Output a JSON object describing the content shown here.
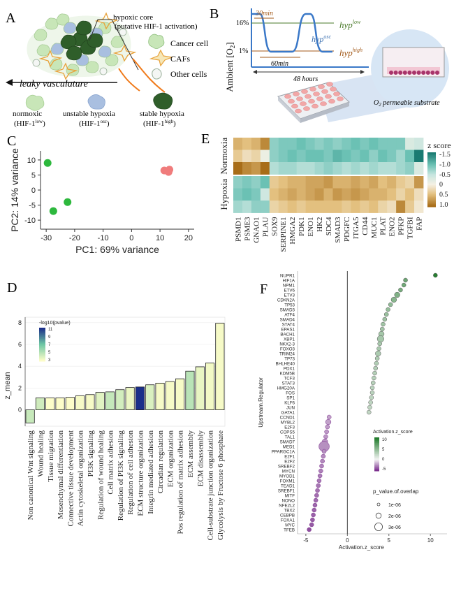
{
  "panel_a": {
    "letter": "A",
    "core_label_1": "hypoxic core",
    "core_label_2": "(putative HIF-1 activation)",
    "legend": [
      "Cancer cell",
      "CAFs",
      "Other cells"
    ],
    "vessel_label": "leaky vasculature",
    "states": [
      {
        "name": "normoxic",
        "sub": "HIF-1",
        "sup": "low"
      },
      {
        "name": "unstable hypoxia",
        "sub": "HIF-1",
        "sup": "osc"
      },
      {
        "name": "stable hypoxia",
        "sub": "HIF-1",
        "sup": "high"
      }
    ],
    "colors": {
      "normoxic": "#c8e6b8",
      "unstable": "#a9bfe0",
      "stable": "#2f5e2a",
      "caf": "#e8a23a",
      "vessel": "#f07a1a"
    }
  },
  "panel_b": {
    "letter": "B",
    "ylabel": "Ambient [O",
    "ylabel_sub": "2",
    "ylabel_end": "]",
    "y16": "16%",
    "y1": "1%",
    "t30": "30min",
    "t60": "60min",
    "t48": "48 hours",
    "hyp_low": "hyp",
    "hyp_low_sup": "low",
    "hyp_osc": "hyp",
    "hyp_osc_sup": "osc",
    "hyp_high": "hyp",
    "hyp_high_sup": "high",
    "substrate": "O",
    "substrate_sub": "2",
    "substrate_rest": " permeable substrate",
    "colors": {
      "low": "#4a7a2a",
      "osc": "#3a6fb0",
      "high": "#a35a1a"
    }
  },
  "panel_c": {
    "letter": "C",
    "chart_data": {
      "type": "scatter",
      "xlabel": "PC1: 69% variance",
      "ylabel": "PC2: 14% variance",
      "xlim": [
        -32,
        22
      ],
      "ylim": [
        -13,
        13
      ],
      "xticks": [
        -30,
        -20,
        -10,
        0,
        10,
        20
      ],
      "yticks": [
        10,
        5,
        0,
        -5,
        -10
      ],
      "series": [
        {
          "color": "#2db83d",
          "points": [
            [
              -29.5,
              9.0
            ],
            [
              -27.5,
              -7.0
            ],
            [
              -22.5,
              -4.0
            ]
          ]
        },
        {
          "color": "#f07c7c",
          "points": [
            [
              11.5,
              6.5
            ],
            [
              13.0,
              6.0
            ],
            [
              13.3,
              6.8
            ]
          ]
        }
      ]
    }
  },
  "panel_d": {
    "letter": "D",
    "chart_data": {
      "type": "bar",
      "ylabel": "z_mean",
      "ylim": [
        -1.5,
        8.5
      ],
      "yticks": [
        0,
        2,
        4,
        6,
        8
      ],
      "legend_title": "-log10(pvalue)",
      "legend_ticks": [
        11,
        9,
        7,
        5,
        3
      ],
      "categories": [
        "Non canonical Wnt signaling",
        "Wound healing",
        "Tissue migration",
        "Mesenchymal differentiation",
        "Connective tissue development",
        "Actin cytoskeletal organization",
        "PI3K signaling",
        "Regulation of wound healing",
        "Cell matrix adhesion",
        "Regulation of PI3K signaling",
        "Regulation of cell adhesion",
        "ECM structure organization",
        "Integrin mediated adhesion",
        "Circadian regulation",
        "ECM organization",
        "Pos regulation of matrix adhesion",
        "ECM assembly",
        "ECM disassembly",
        "Cell-substrate junction organization",
        "Glycolysis by Fructose 6 phosphate"
      ],
      "values": [
        -1.2,
        1.1,
        1.1,
        1.1,
        1.15,
        1.3,
        1.4,
        1.6,
        1.65,
        1.85,
        2.05,
        2.1,
        2.3,
        2.45,
        2.6,
        2.85,
        3.55,
        3.95,
        4.3,
        7.95
      ],
      "neglog10p": [
        4.5,
        4.3,
        3.0,
        3.0,
        3.0,
        3.2,
        3.2,
        3.8,
        4.6,
        4.2,
        3.5,
        11.0,
        4.0,
        3.2,
        3.2,
        3.2,
        4.9,
        3.6,
        3.3,
        3.2
      ]
    }
  },
  "panel_e": {
    "letter": "E",
    "chart_data": {
      "type": "heatmap",
      "columns": [
        "PSMD1",
        "PSME3",
        "GNAO1",
        "PLAU",
        "SOX9",
        "SERPINE1",
        "HMGA2",
        "PDK1",
        "ENO1",
        "HK2",
        "SDC4",
        "SMAD3",
        "PDGFC",
        "ITGA5",
        "CD44",
        "MUC1",
        "PLAT",
        "ENO2",
        "PFKP",
        "TGFBI",
        "FAP"
      ],
      "row_groups": [
        "Normoxia",
        "Hypoxia"
      ],
      "scale_title": "z score",
      "scale_ticks": [
        "-1.5",
        "-1.0",
        "-0.5",
        "0",
        "0.5",
        "1.0"
      ],
      "normoxia": [
        [
          0.6,
          0.5,
          0.6,
          0.9,
          -0.8,
          -0.9,
          -0.9,
          -1.0,
          -0.9,
          -0.8,
          -0.9,
          -0.8,
          -0.9,
          -1.0,
          -0.9,
          -1.0,
          -0.9,
          -0.9,
          -0.9,
          -0.3,
          -0.4
        ],
        [
          0.4,
          0.2,
          0.3,
          -0.1,
          -0.8,
          -0.9,
          -1.0,
          -0.9,
          -1.0,
          -1.0,
          -0.9,
          -1.1,
          -1.0,
          -0.9,
          -1.0,
          -0.8,
          -1.0,
          -0.9,
          -0.7,
          -1.0,
          -1.6
        ],
        [
          1.1,
          0.9,
          0.8,
          1.3,
          -0.6,
          -0.7,
          -0.7,
          -0.6,
          -0.6,
          -0.7,
          -0.8,
          -0.7,
          -0.6,
          -0.7,
          -0.6,
          -0.7,
          -0.6,
          -0.6,
          -0.7,
          -0.8,
          -0.3
        ]
      ],
      "hypoxia": [
        [
          -0.8,
          -0.9,
          -0.8,
          -1.0,
          0.4,
          0.5,
          0.6,
          0.6,
          0.7,
          0.7,
          0.8,
          0.6,
          0.6,
          0.7,
          0.6,
          0.7,
          0.5,
          0.6,
          0.4,
          0.3,
          0.8
        ],
        [
          -0.9,
          -1.0,
          -0.9,
          -0.4,
          0.5,
          0.6,
          0.7,
          0.6,
          0.7,
          0.8,
          0.6,
          0.8,
          0.7,
          0.8,
          0.7,
          0.6,
          0.6,
          0.5,
          0.3,
          0.5,
          0.2
        ],
        [
          -0.7,
          -0.6,
          -0.8,
          -0.8,
          0.3,
          0.4,
          0.5,
          0.4,
          0.5,
          0.5,
          0.5,
          0.5,
          0.4,
          0.5,
          0.4,
          0.5,
          0.3,
          0.2,
          0.9,
          0.4,
          0.1
        ]
      ]
    }
  },
  "panel_f": {
    "letter": "F",
    "chart_data": {
      "type": "scatter",
      "xlabel": "Activation.z_score",
      "ylabel": "Upstream.Regulator",
      "xlim": [
        -6,
        12
      ],
      "xticks": [
        -5,
        0,
        5,
        10
      ],
      "color_legend_title": "Activation.z_score",
      "color_legend_ticks": [
        10,
        5,
        0,
        -5
      ],
      "size_legend_title": "p_value.of.overlap",
      "size_legend_items": [
        "1e-06",
        "2e-06",
        "3e-06"
      ],
      "regulators": [
        "NUPR1",
        "HIF1A",
        "NPM1",
        "ETV6",
        "ETV3",
        "CDKN2A",
        "TP53",
        "SMAD3",
        "ATF4",
        "SMAD4",
        "STAT4",
        "EPAS1",
        "BACH1",
        "XBP1",
        "NKX2-3",
        "FOXO3",
        "TRIM24",
        "TP73",
        "BHLHE40",
        "PDX1",
        "KDM5B",
        "TCF3",
        "STAT3",
        "HMG20A",
        "FOS",
        "SP1",
        "KLF6",
        "JUN",
        "GATA1",
        "CCND1",
        "MYBL2",
        "E2F3",
        "COPS5",
        "TAL1",
        "SMAD7",
        "MED1",
        "PPARGC1A",
        "E2F1",
        "E2F2",
        "SREBF2",
        "MYCN",
        "MYOD1",
        "FOXM1",
        "TEAD1",
        "SREBF1",
        "MITF",
        "NONO",
        "NFE2L2",
        "TBX2",
        "CEBPB",
        "FOXA1",
        "MYC",
        "TFEB"
      ],
      "z_scores": [
        10.6,
        7.0,
        6.8,
        6.4,
        6.0,
        5.6,
        5.2,
        4.9,
        4.7,
        4.5,
        4.3,
        4.2,
        4.1,
        4.0,
        3.9,
        3.8,
        3.7,
        3.6,
        3.5,
        3.4,
        3.3,
        3.2,
        3.1,
        3.0,
        3.0,
        2.9,
        2.8,
        2.7,
        2.6,
        -2.2,
        -2.3,
        -2.4,
        -2.5,
        -2.6,
        -2.7,
        -2.8,
        -2.8,
        -2.9,
        -3.0,
        -3.1,
        -3.2,
        -3.3,
        -3.4,
        -3.5,
        -3.6,
        -3.7,
        -3.8,
        -3.9,
        -4.0,
        -4.1,
        -4.2,
        -4.3,
        -4.6
      ],
      "p_values_e6": [
        1,
        1,
        1,
        1,
        1.5,
        1.5,
        1,
        1,
        1,
        1,
        1,
        1,
        1.5,
        2,
        1,
        1,
        1.5,
        1,
        1,
        1,
        1,
        1,
        1,
        1,
        1,
        1,
        1,
        1,
        1,
        1,
        1.5,
        1,
        1,
        1,
        1.5,
        3.5,
        1,
        1,
        1,
        1,
        1,
        1,
        1,
        1,
        1,
        1,
        1,
        1,
        1,
        1,
        1,
        1,
        1
      ]
    }
  }
}
